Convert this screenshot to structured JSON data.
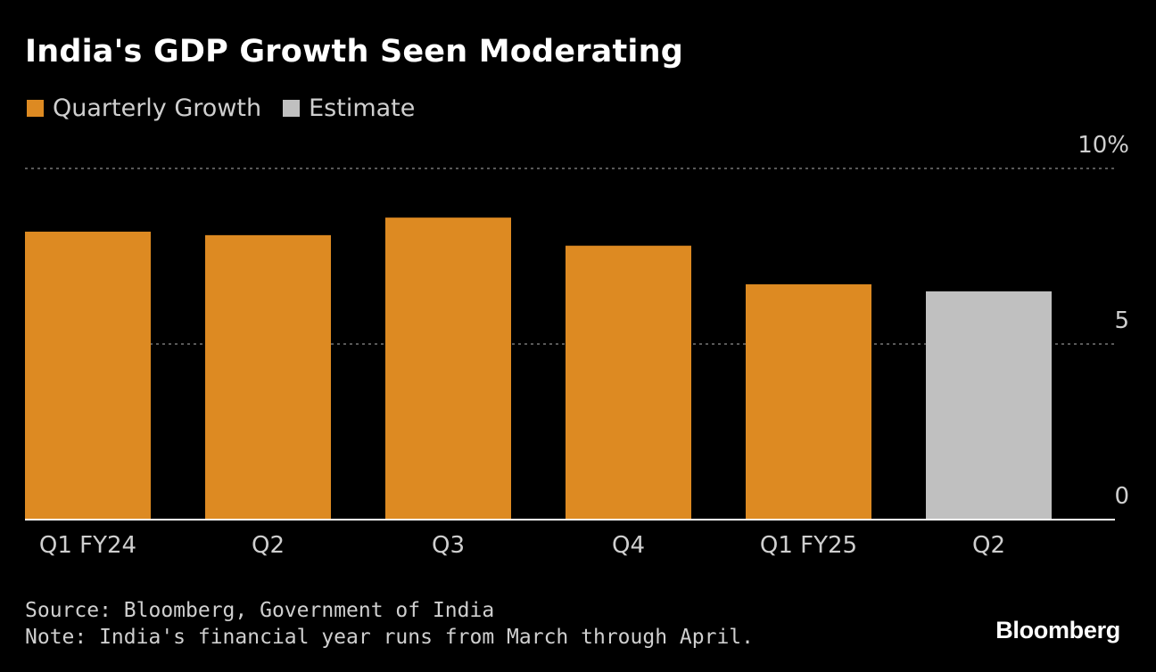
{
  "chart_data": {
    "type": "bar",
    "title": "India's GDP Growth Seen Moderating",
    "categories": [
      "Q1 FY24",
      "Q2",
      "Q3",
      "Q4",
      "Q1 FY25",
      "Q2"
    ],
    "values": [
      8.2,
      8.1,
      8.6,
      7.8,
      6.7,
      6.5
    ],
    "estimate_flags": [
      false,
      false,
      false,
      false,
      false,
      true
    ],
    "legend": [
      {
        "label": "Quarterly Growth",
        "color": "#dd8a22"
      },
      {
        "label": "Estimate",
        "color": "#c0c0c0"
      }
    ],
    "yticks": [
      {
        "value": 10,
        "label": "10%"
      },
      {
        "value": 5,
        "label": "5"
      },
      {
        "value": 0,
        "label": "0"
      }
    ],
    "ylim": [
      0,
      10
    ],
    "xlabel": "",
    "ylabel": "",
    "grid": true
  },
  "footer": {
    "source": "Source: Bloomberg, Government of India",
    "note": "Note: India's financial year runs from March through April."
  },
  "brand": "Bloomberg"
}
